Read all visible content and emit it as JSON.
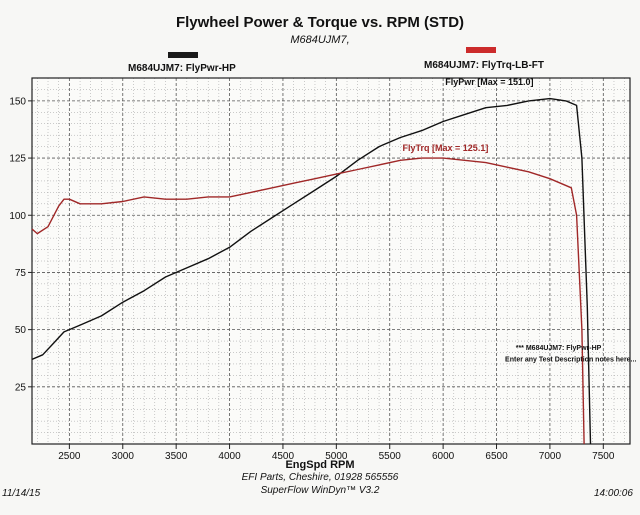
{
  "chart_data": {
    "type": "line",
    "title": "Flywheel Power & Torque vs. RPM (STD)",
    "subtitle": "M684UJM7,",
    "xlabel": "EngSpd RPM",
    "ylabel": "",
    "xlim": [
      2150,
      7750
    ],
    "ylim": [
      0,
      160
    ],
    "xticks": [
      2500,
      3000,
      3500,
      4000,
      4500,
      5000,
      5500,
      6000,
      6500,
      7000,
      7500
    ],
    "yticks": [
      25,
      50,
      75,
      100,
      125,
      150
    ],
    "grid": true,
    "legend": [
      {
        "label": "M684UJM7: FlyPwr-HP",
        "color": "#1a1a1a"
      },
      {
        "label": "M684UJM7: FlyTrq-LB-FT",
        "color": "#cc2b2b"
      }
    ],
    "series": [
      {
        "name": "FlyPwr",
        "color": "#111111",
        "annotation": "FlyPwr [Max = 151.0]",
        "x": [
          2150,
          2250,
          2350,
          2450,
          2500,
          2600,
          2800,
          3000,
          3200,
          3400,
          3600,
          3800,
          4000,
          4200,
          4400,
          4600,
          4800,
          5000,
          5200,
          5400,
          5600,
          5800,
          6000,
          6200,
          6400,
          6600,
          6800,
          7000,
          7150,
          7250,
          7300,
          7350,
          7380
        ],
        "y": [
          37,
          39,
          44,
          49,
          50,
          52,
          56,
          62,
          67,
          73,
          77,
          81,
          86,
          93,
          99,
          105,
          111,
          117,
          124,
          130,
          134,
          137,
          141,
          144,
          147,
          148,
          150,
          151,
          150,
          148,
          125,
          60,
          0
        ]
      },
      {
        "name": "FlyTrq",
        "color": "#a02828",
        "annotation": "FlyTrq [Max = 125.1]",
        "x": [
          2150,
          2200,
          2300,
          2400,
          2450,
          2500,
          2600,
          2800,
          3000,
          3200,
          3400,
          3600,
          3800,
          4000,
          4200,
          4400,
          4600,
          4800,
          5000,
          5200,
          5400,
          5600,
          5800,
          6000,
          6200,
          6400,
          6600,
          6800,
          7000,
          7200,
          7250,
          7300,
          7320
        ],
        "y": [
          94,
          92,
          95,
          104,
          107,
          107,
          105,
          105,
          106,
          108,
          107,
          107,
          108,
          108,
          110,
          112,
          114,
          116,
          118,
          120,
          122,
          124,
          125,
          125,
          124,
          123,
          121,
          119,
          116,
          112,
          100,
          50,
          0
        ]
      }
    ],
    "notes": [
      "*** M684UJM7: FlyPwr-HP",
      "Enter any Test Description notes here..."
    ],
    "footer": {
      "line1": "EFI Parts, Cheshire, 01928 565556",
      "line2": "SuperFlow WinDyn™ V3.2",
      "date": "11/14/15",
      "time": "14:00:06"
    }
  }
}
